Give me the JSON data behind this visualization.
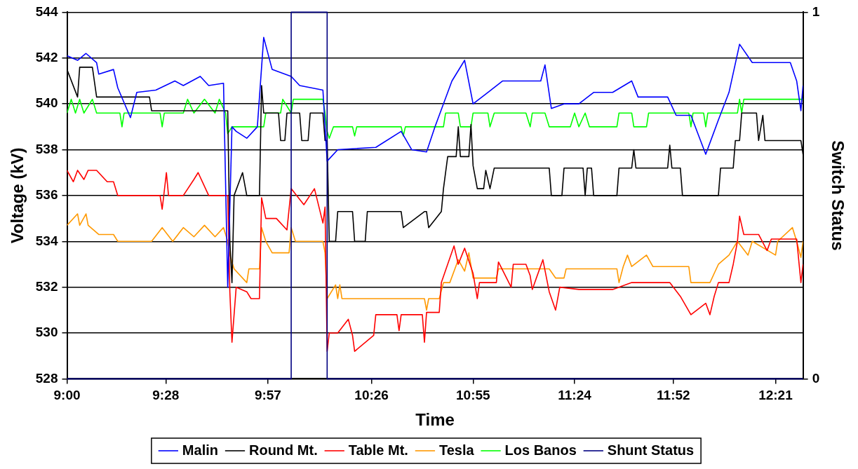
{
  "chart_data": {
    "type": "line",
    "xlabel": "Time",
    "ylabel": "Voltage (kV)",
    "y2label": "Switch Status",
    "xlim": [
      9,
      12.48
    ],
    "xticks": [
      {
        "value": 9,
        "label": "9:00"
      },
      {
        "value": 9.467,
        "label": "9:28"
      },
      {
        "value": 9.95,
        "label": "9:57"
      },
      {
        "value": 10.44,
        "label": "10:26"
      },
      {
        "value": 10.92,
        "label": "10:55"
      },
      {
        "value": 11.4,
        "label": "11:24"
      },
      {
        "value": 11.867,
        "label": "11:52"
      },
      {
        "value": 12.35,
        "label": "12:21"
      }
    ],
    "ylim": [
      528,
      544
    ],
    "yticks": [
      528,
      530,
      532,
      534,
      536,
      538,
      540,
      542,
      544
    ],
    "y2lim": [
      0,
      1
    ],
    "y2ticks": [
      0,
      1
    ],
    "grid": "y",
    "legend": "bottom",
    "marker": "none",
    "line_style": "solid",
    "series": [
      {
        "name": "Malin",
        "color": "#0000ff",
        "x": [
          9.0,
          9.05,
          9.09,
          9.14,
          9.15,
          9.22,
          9.24,
          9.3,
          9.33,
          9.42,
          9.51,
          9.55,
          9.63,
          9.67,
          9.74,
          9.76,
          9.78,
          9.8,
          9.85,
          9.9,
          9.93,
          9.97,
          10.06,
          10.1,
          10.21,
          10.23,
          10.28,
          10.46,
          10.58,
          10.63,
          10.7,
          10.74,
          10.82,
          10.88,
          10.92,
          10.99,
          11.06,
          11.24,
          11.26,
          11.29,
          11.35,
          11.42,
          11.49,
          11.58,
          11.67,
          11.7,
          11.84,
          11.88,
          11.95,
          12.02,
          12.08,
          12.13,
          12.18,
          12.24,
          12.42,
          12.45,
          12.47,
          12.48
        ],
        "values": [
          542.1,
          541.9,
          542.2,
          541.8,
          541.3,
          541.5,
          540.7,
          539.4,
          540.5,
          540.6,
          541.0,
          540.8,
          541.2,
          540.8,
          540.9,
          532.0,
          539.0,
          538.8,
          538.5,
          539.0,
          542.9,
          541.5,
          541.2,
          540.8,
          540.6,
          537.5,
          538.0,
          538.1,
          538.8,
          538.0,
          537.9,
          539.0,
          541.0,
          541.9,
          540.0,
          540.5,
          541.0,
          541.0,
          541.7,
          539.8,
          540.0,
          540.0,
          540.5,
          540.5,
          541.0,
          540.3,
          540.3,
          539.5,
          539.5,
          537.8,
          539.3,
          540.5,
          542.6,
          541.8,
          541.8,
          541.0,
          539.7,
          540.8
        ]
      },
      {
        "name": "Round Mt.",
        "color": "#000000",
        "x": [
          9.0,
          9.05,
          9.06,
          9.12,
          9.14,
          9.39,
          9.4,
          9.76,
          9.77,
          9.78,
          9.79,
          9.83,
          9.85,
          9.91,
          9.92,
          9.93,
          10.0,
          10.01,
          10.03,
          10.04,
          10.1,
          10.11,
          10.14,
          10.15,
          10.21,
          10.22,
          10.23,
          10.24,
          10.27,
          10.28,
          10.35,
          10.36,
          10.41,
          10.42,
          10.58,
          10.59,
          10.69,
          10.7,
          10.71,
          10.77,
          10.78,
          10.8,
          10.84,
          10.85,
          10.86,
          10.9,
          10.91,
          10.92,
          10.94,
          10.97,
          10.98,
          11.0,
          11.02,
          11.28,
          11.29,
          11.34,
          11.35,
          11.44,
          11.45,
          11.46,
          11.48,
          11.49,
          11.6,
          11.61,
          11.67,
          11.68,
          11.69,
          11.84,
          11.85,
          11.86,
          11.9,
          11.91,
          12.08,
          12.09,
          12.15,
          12.16,
          12.18,
          12.19,
          12.26,
          12.27,
          12.29,
          12.3,
          12.47,
          12.48
        ],
        "values": [
          541.5,
          540.3,
          541.6,
          541.6,
          540.3,
          540.3,
          539.7,
          539.7,
          534.0,
          532.2,
          536.0,
          537.0,
          536.0,
          536.0,
          540.8,
          539.6,
          539.6,
          538.4,
          538.4,
          539.6,
          539.6,
          538.4,
          538.4,
          539.6,
          539.6,
          538.4,
          538.4,
          534.0,
          534.0,
          535.3,
          535.3,
          534.0,
          534.0,
          535.3,
          535.3,
          534.6,
          535.3,
          535.3,
          534.6,
          535.3,
          536.3,
          537.7,
          537.7,
          539.0,
          537.7,
          537.7,
          539.1,
          537.3,
          536.3,
          536.3,
          537.1,
          536.3,
          537.2,
          537.2,
          536.0,
          536.0,
          537.2,
          537.2,
          536.0,
          537.2,
          537.2,
          536.0,
          536.0,
          537.2,
          537.2,
          538.0,
          537.2,
          537.2,
          538.2,
          537.2,
          537.2,
          536.0,
          536.0,
          537.2,
          537.2,
          538.4,
          538.4,
          539.6,
          539.6,
          538.4,
          539.5,
          538.4,
          538.4,
          537.8
        ]
      },
      {
        "name": "Table Mt.",
        "color": "#ff0000",
        "x": [
          9.0,
          9.03,
          9.05,
          9.08,
          9.1,
          9.14,
          9.19,
          9.22,
          9.24,
          9.44,
          9.45,
          9.47,
          9.48,
          9.55,
          9.6,
          9.62,
          9.67,
          9.76,
          9.77,
          9.78,
          9.8,
          9.85,
          9.87,
          9.91,
          9.92,
          9.94,
          9.99,
          10.04,
          10.06,
          10.12,
          10.17,
          10.21,
          10.22,
          10.23,
          10.24,
          10.28,
          10.33,
          10.35,
          10.36,
          10.45,
          10.46,
          10.56,
          10.57,
          10.58,
          10.68,
          10.69,
          10.7,
          10.76,
          10.77,
          10.83,
          10.85,
          10.88,
          10.92,
          10.94,
          10.95,
          11.03,
          11.04,
          11.1,
          11.11,
          11.17,
          11.19,
          11.2,
          11.25,
          11.28,
          11.31,
          11.33,
          11.42,
          11.58,
          11.67,
          11.85,
          11.9,
          11.95,
          12.02,
          12.04,
          12.06,
          12.08,
          12.13,
          12.15,
          12.17,
          12.18,
          12.2,
          12.27,
          12.31,
          12.33,
          12.45,
          12.47,
          12.48
        ],
        "values": [
          537.1,
          536.6,
          537.1,
          536.7,
          537.1,
          537.1,
          536.6,
          536.6,
          536.0,
          536.0,
          535.4,
          537.0,
          536.0,
          536.0,
          536.7,
          537.0,
          536.0,
          536.0,
          531.8,
          529.6,
          532.0,
          531.8,
          531.5,
          531.5,
          535.9,
          535.0,
          535.0,
          534.5,
          536.3,
          535.6,
          536.3,
          534.8,
          535.5,
          529.2,
          530.0,
          530.0,
          530.6,
          529.9,
          529.2,
          529.9,
          530.8,
          530.8,
          530.1,
          530.8,
          530.8,
          529.6,
          530.9,
          530.9,
          532.2,
          533.8,
          533.0,
          533.7,
          532.6,
          531.5,
          532.2,
          532.2,
          533.1,
          532.0,
          533.0,
          533.0,
          532.5,
          531.9,
          533.2,
          531.8,
          531.0,
          532.0,
          531.9,
          531.9,
          532.2,
          532.2,
          531.6,
          530.8,
          531.3,
          530.8,
          531.6,
          532.2,
          532.2,
          533.0,
          534.0,
          535.1,
          534.3,
          534.3,
          533.6,
          534.1,
          534.1,
          532.2,
          533.0
        ]
      },
      {
        "name": "Tesla",
        "color": "#ff9900",
        "x": [
          9.0,
          9.05,
          9.06,
          9.09,
          9.1,
          9.15,
          9.22,
          9.24,
          9.4,
          9.45,
          9.5,
          9.55,
          9.6,
          9.65,
          9.7,
          9.74,
          9.76,
          9.77,
          9.79,
          9.85,
          9.86,
          9.91,
          9.92,
          9.94,
          9.97,
          10.05,
          10.06,
          10.08,
          10.21,
          10.22,
          10.23,
          10.27,
          10.28,
          10.29,
          10.3,
          10.69,
          10.7,
          10.71,
          10.76,
          10.78,
          10.81,
          10.85,
          10.88,
          10.9,
          10.92,
          11.03,
          11.04,
          11.28,
          11.31,
          11.35,
          11.36,
          11.6,
          11.61,
          11.63,
          11.65,
          11.67,
          11.74,
          11.77,
          11.94,
          11.95,
          12.04,
          12.08,
          12.13,
          12.17,
          12.22,
          12.24,
          12.35,
          12.36,
          12.43,
          12.45,
          12.47,
          12.48
        ],
        "values": [
          534.7,
          535.2,
          534.7,
          535.2,
          534.7,
          534.3,
          534.3,
          534.0,
          534.0,
          534.6,
          534.0,
          534.6,
          534.2,
          534.7,
          534.2,
          534.6,
          534.0,
          533.4,
          532.8,
          532.2,
          532.8,
          532.8,
          534.6,
          534.0,
          533.5,
          533.5,
          534.6,
          534.0,
          534.0,
          533.5,
          531.5,
          532.1,
          531.5,
          532.1,
          531.5,
          531.5,
          531.0,
          531.5,
          531.5,
          532.2,
          532.2,
          533.2,
          532.7,
          533.5,
          532.4,
          532.4,
          532.8,
          532.8,
          532.4,
          532.4,
          532.8,
          532.8,
          532.2,
          532.9,
          533.4,
          532.9,
          533.4,
          532.9,
          532.9,
          532.2,
          532.2,
          533.0,
          533.4,
          534.0,
          533.4,
          534.0,
          533.4,
          534.0,
          534.6,
          534.0,
          533.3,
          534.0
        ]
      },
      {
        "name": "Los Banos",
        "color": "#00ff00",
        "x": [
          9.0,
          9.02,
          9.04,
          9.06,
          9.08,
          9.12,
          9.14,
          9.25,
          9.26,
          9.27,
          9.44,
          9.45,
          9.46,
          9.55,
          9.57,
          9.6,
          9.65,
          9.7,
          9.72,
          9.75,
          9.76,
          9.78,
          9.93,
          9.94,
          10.01,
          10.02,
          10.06,
          10.07,
          10.21,
          10.22,
          10.23,
          10.24,
          10.26,
          10.35,
          10.36,
          10.37,
          10.58,
          10.59,
          10.6,
          10.78,
          10.79,
          10.85,
          10.86,
          10.91,
          10.92,
          10.99,
          11.0,
          11.02,
          11.17,
          11.19,
          11.2,
          11.26,
          11.28,
          11.38,
          11.4,
          11.42,
          11.45,
          11.47,
          11.6,
          11.61,
          11.67,
          11.68,
          11.74,
          11.75,
          11.94,
          11.95,
          11.96,
          12.01,
          12.02,
          12.03,
          12.17,
          12.18,
          12.19,
          12.2,
          12.48
        ],
        "values": [
          539.6,
          540.2,
          539.6,
          540.2,
          539.6,
          540.2,
          539.6,
          539.6,
          539.0,
          539.6,
          539.6,
          539.0,
          539.6,
          539.6,
          540.2,
          539.6,
          540.2,
          539.6,
          540.2,
          539.6,
          538.7,
          539.0,
          539.0,
          539.6,
          539.6,
          540.2,
          539.6,
          540.2,
          540.2,
          539.6,
          538.8,
          538.5,
          539.0,
          539.0,
          538.6,
          539.0,
          539.0,
          538.6,
          539.0,
          539.0,
          539.6,
          539.6,
          539.0,
          539.0,
          539.6,
          539.6,
          539.0,
          539.6,
          539.6,
          539.0,
          539.6,
          539.6,
          539.0,
          539.0,
          539.6,
          539.0,
          539.6,
          539.0,
          539.0,
          539.6,
          539.6,
          539.0,
          539.0,
          539.6,
          539.6,
          539.0,
          539.6,
          539.6,
          539.0,
          539.6,
          539.6,
          540.2,
          539.6,
          540.2,
          540.2
        ]
      },
      {
        "name": "Shunt Status",
        "color": "#000080",
        "axis": "y2",
        "x": [
          9.0,
          10.06,
          10.06,
          10.23,
          10.23,
          12.48
        ],
        "values": [
          0,
          0,
          1,
          1,
          0,
          0
        ]
      }
    ]
  }
}
